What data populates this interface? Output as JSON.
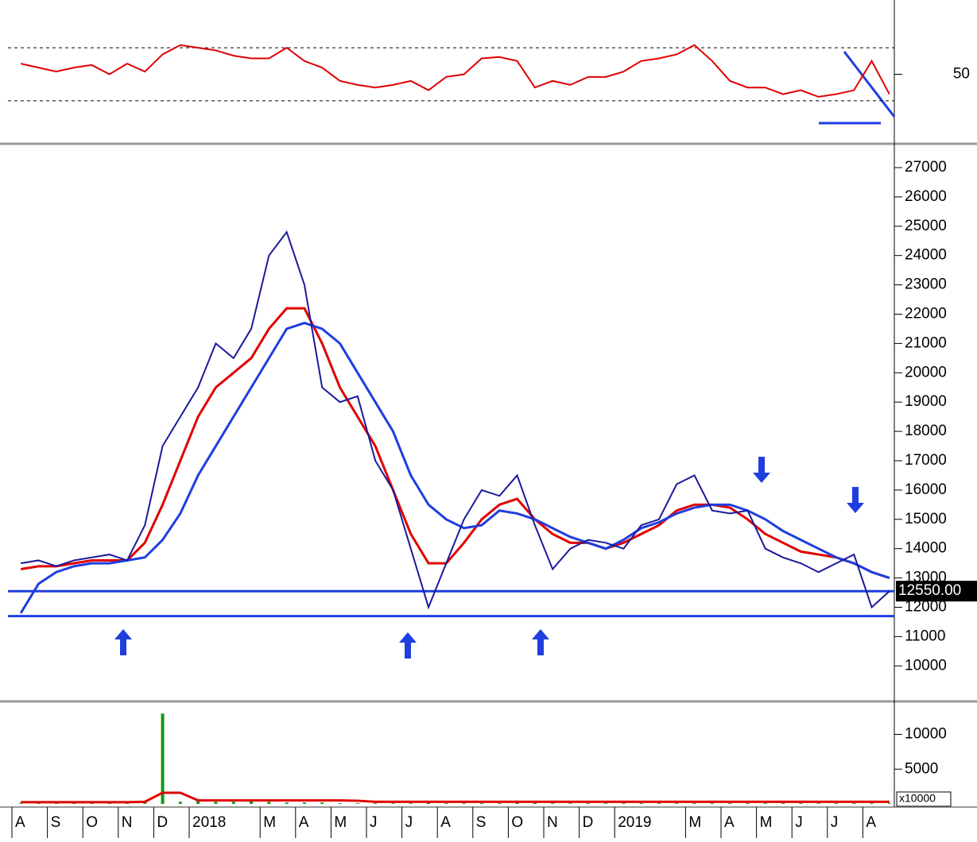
{
  "chart_data": [
    {
      "type": "line",
      "ylim": [
        0,
        100
      ],
      "yticks": [
        50
      ],
      "hlines": [
        70,
        30
      ],
      "series": [
        {
          "color": "#e00000",
          "values": [
            58,
            55,
            52,
            55,
            57,
            50,
            58,
            52,
            65,
            72,
            70,
            68,
            64,
            62,
            62,
            70,
            60,
            55,
            45,
            42,
            40,
            42,
            45,
            38,
            48,
            50,
            62,
            63,
            60,
            40,
            45,
            42,
            48,
            48,
            52,
            60,
            62,
            65,
            72,
            60,
            45,
            40,
            40,
            35,
            38,
            33,
            35,
            38,
            60,
            35
          ]
        }
      ]
    },
    {
      "type": "line",
      "ylim": [
        8870,
        27650
      ],
      "yticks": [
        10000,
        11000,
        12000,
        13000,
        14000,
        15000,
        16000,
        17000,
        18000,
        19000,
        20000,
        21000,
        22000,
        23000,
        24000,
        25000,
        26000,
        27000
      ],
      "hlines": [
        {
          "value": 12550,
          "label": "12550.00"
        },
        11700
      ],
      "series": [
        {
          "color": "#e00000",
          "values": [
            13300,
            13400,
            13400,
            13500,
            13600,
            13600,
            13600,
            14200,
            15500,
            17000,
            18500,
            19500,
            20000,
            20500,
            21500,
            22200,
            22200,
            21000,
            19500,
            18500,
            17500,
            16000,
            14500,
            13500,
            13500,
            14200,
            15000,
            15500,
            15700,
            15000,
            14500,
            14200,
            14200,
            14000,
            14200,
            14500,
            14800,
            15300,
            15500,
            15500,
            15400,
            15000,
            14500,
            14200,
            13900,
            13800,
            13700,
            13500,
            13200,
            13000
          ]
        },
        {
          "color": "#1f3ee0",
          "values": [
            11800,
            12800,
            13200,
            13400,
            13500,
            13500,
            13600,
            13700,
            14300,
            15200,
            16500,
            17500,
            18500,
            19500,
            20500,
            21500,
            21700,
            21500,
            21000,
            20000,
            19000,
            18000,
            16500,
            15500,
            15000,
            14700,
            14800,
            15300,
            15200,
            15000,
            14700,
            14400,
            14200,
            14000,
            14300,
            14700,
            14900,
            15200,
            15400,
            15500,
            15500,
            15300,
            15000,
            14600,
            14300,
            14000,
            13700,
            13500,
            13200,
            13000
          ]
        },
        {
          "color": "#1a1a9c",
          "values": [
            13500,
            13600,
            13400,
            13600,
            13700,
            13800,
            13600,
            14800,
            17500,
            18500,
            19500,
            21000,
            20500,
            21500,
            24000,
            24800,
            23000,
            19500,
            19000,
            19200,
            17000,
            16000,
            14000,
            12000,
            13500,
            15000,
            16000,
            15800,
            16500,
            14800,
            13300,
            14000,
            14300,
            14200,
            14000,
            14800,
            15000,
            16200,
            16500,
            15300,
            15200,
            15300,
            14000,
            13700,
            13500,
            13200,
            13500,
            13800,
            12000,
            12550
          ]
        }
      ]
    },
    {
      "type": "bar",
      "ylim": [
        0,
        14400
      ],
      "yticks": [
        5000,
        10000
      ],
      "unit_label": "x10000",
      "categories": [
        "A",
        null,
        "S",
        null,
        "O",
        null,
        "N",
        null,
        "D",
        null,
        "2018",
        null,
        null,
        null,
        "M",
        null,
        "A",
        null,
        "M",
        null,
        "J",
        null,
        "J",
        null,
        "A",
        null,
        "S",
        null,
        "O",
        null,
        "N",
        null,
        "D",
        null,
        "2019",
        null,
        null,
        null,
        "M",
        null,
        "A",
        null,
        "M",
        null,
        "J",
        null,
        "J",
        null,
        "A",
        null
      ],
      "series": [
        {
          "color": "#119911",
          "values": [
            100,
            100,
            100,
            100,
            100,
            100,
            200,
            300,
            13000,
            300,
            400,
            300,
            300,
            600,
            300,
            200,
            200,
            200,
            100,
            100,
            100,
            100,
            100,
            200,
            100,
            100,
            100,
            100,
            300,
            200,
            100,
            100,
            100,
            100,
            100,
            100,
            100,
            100,
            100,
            100,
            100,
            100,
            100,
            100,
            100,
            100,
            100,
            100,
            100,
            100
          ]
        },
        {
          "color": "#e00000",
          "values": [
            250,
            250,
            250,
            250,
            250,
            250,
            250,
            300,
            1600,
            1600,
            500,
            500,
            500,
            500,
            500,
            500,
            500,
            500,
            500,
            450,
            300,
            300,
            300,
            300,
            300,
            300,
            300,
            300,
            300,
            300,
            300,
            300,
            300,
            300,
            300,
            300,
            300,
            300,
            300,
            300,
            300,
            300,
            300,
            300,
            300,
            300,
            300,
            300,
            300,
            300
          ]
        }
      ]
    }
  ]
}
